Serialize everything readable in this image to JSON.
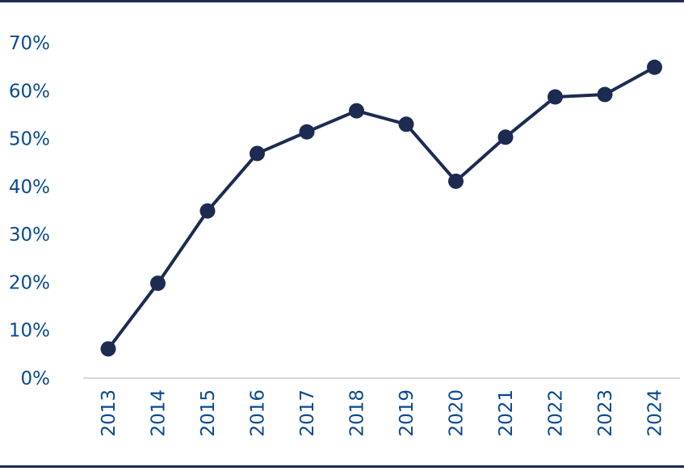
{
  "chart_data": {
    "type": "line",
    "categories": [
      "2013",
      "2014",
      "2015",
      "2016",
      "2017",
      "2018",
      "2019",
      "2020",
      "2021",
      "2022",
      "2023",
      "2024"
    ],
    "values": [
      6.1,
      19.8,
      34.9,
      46.9,
      51.4,
      55.8,
      53.0,
      41.1,
      50.3,
      58.7,
      59.2,
      64.9
    ],
    "ylim": [
      0,
      70
    ],
    "yticks": [
      "0%",
      "10%",
      "20%",
      "30%",
      "40%",
      "50%",
      "60%",
      "70%"
    ],
    "title": "",
    "xlabel": "",
    "ylabel": "",
    "grid": false,
    "colors": {
      "line": "#1c2b52",
      "tick_text": "#0a4a8f",
      "axis": "#bfbfbf"
    }
  }
}
